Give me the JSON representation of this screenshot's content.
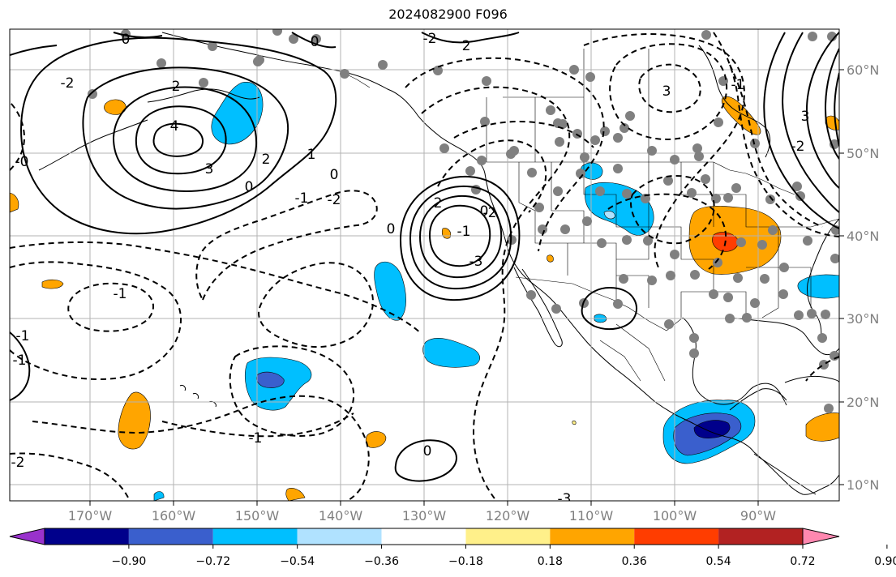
{
  "title": "2024082900 F096",
  "map": {
    "lon_labels": [
      "170°W",
      "160°W",
      "150°W",
      "140°W",
      "130°W",
      "120°W",
      "110°W",
      "100°W",
      "90°W"
    ],
    "lat_labels": [
      "60°N",
      "50°N",
      "40°N",
      "30°N",
      "20°N",
      "10°N"
    ],
    "contour_labels": [
      "0",
      "0",
      "-2",
      "-2",
      "2",
      "2",
      "4",
      "3",
      "2",
      "1",
      "0",
      "0",
      "0",
      "-1",
      "-2",
      "-0",
      "-1",
      "-1",
      "0",
      "-1",
      "-1",
      "0",
      "2",
      "-3",
      "-1",
      "3",
      "3",
      "-1",
      "-2",
      "-2",
      "-2",
      "-3"
    ]
  },
  "colorbar": {
    "tick_labels": [
      "−0.90",
      "−0.72",
      "−0.54",
      "−0.36",
      "−0.18",
      "0.18",
      "0.36",
      "0.54",
      "0.72",
      "0.90"
    ],
    "colors": [
      "#9932cc",
      "#00008b",
      "#3a5fcd",
      "#00bfff",
      "#b0e2ff",
      "#ffffff",
      "#fff08a",
      "#ffa500",
      "#ff3d00",
      "#b22222",
      "#ff88b0"
    ]
  },
  "shading": {
    "negative_colors": [
      "#00bfff",
      "#3a5fcd",
      "#00008b"
    ],
    "positive_colors": [
      "#ffa500",
      "#ff3d00"
    ]
  }
}
